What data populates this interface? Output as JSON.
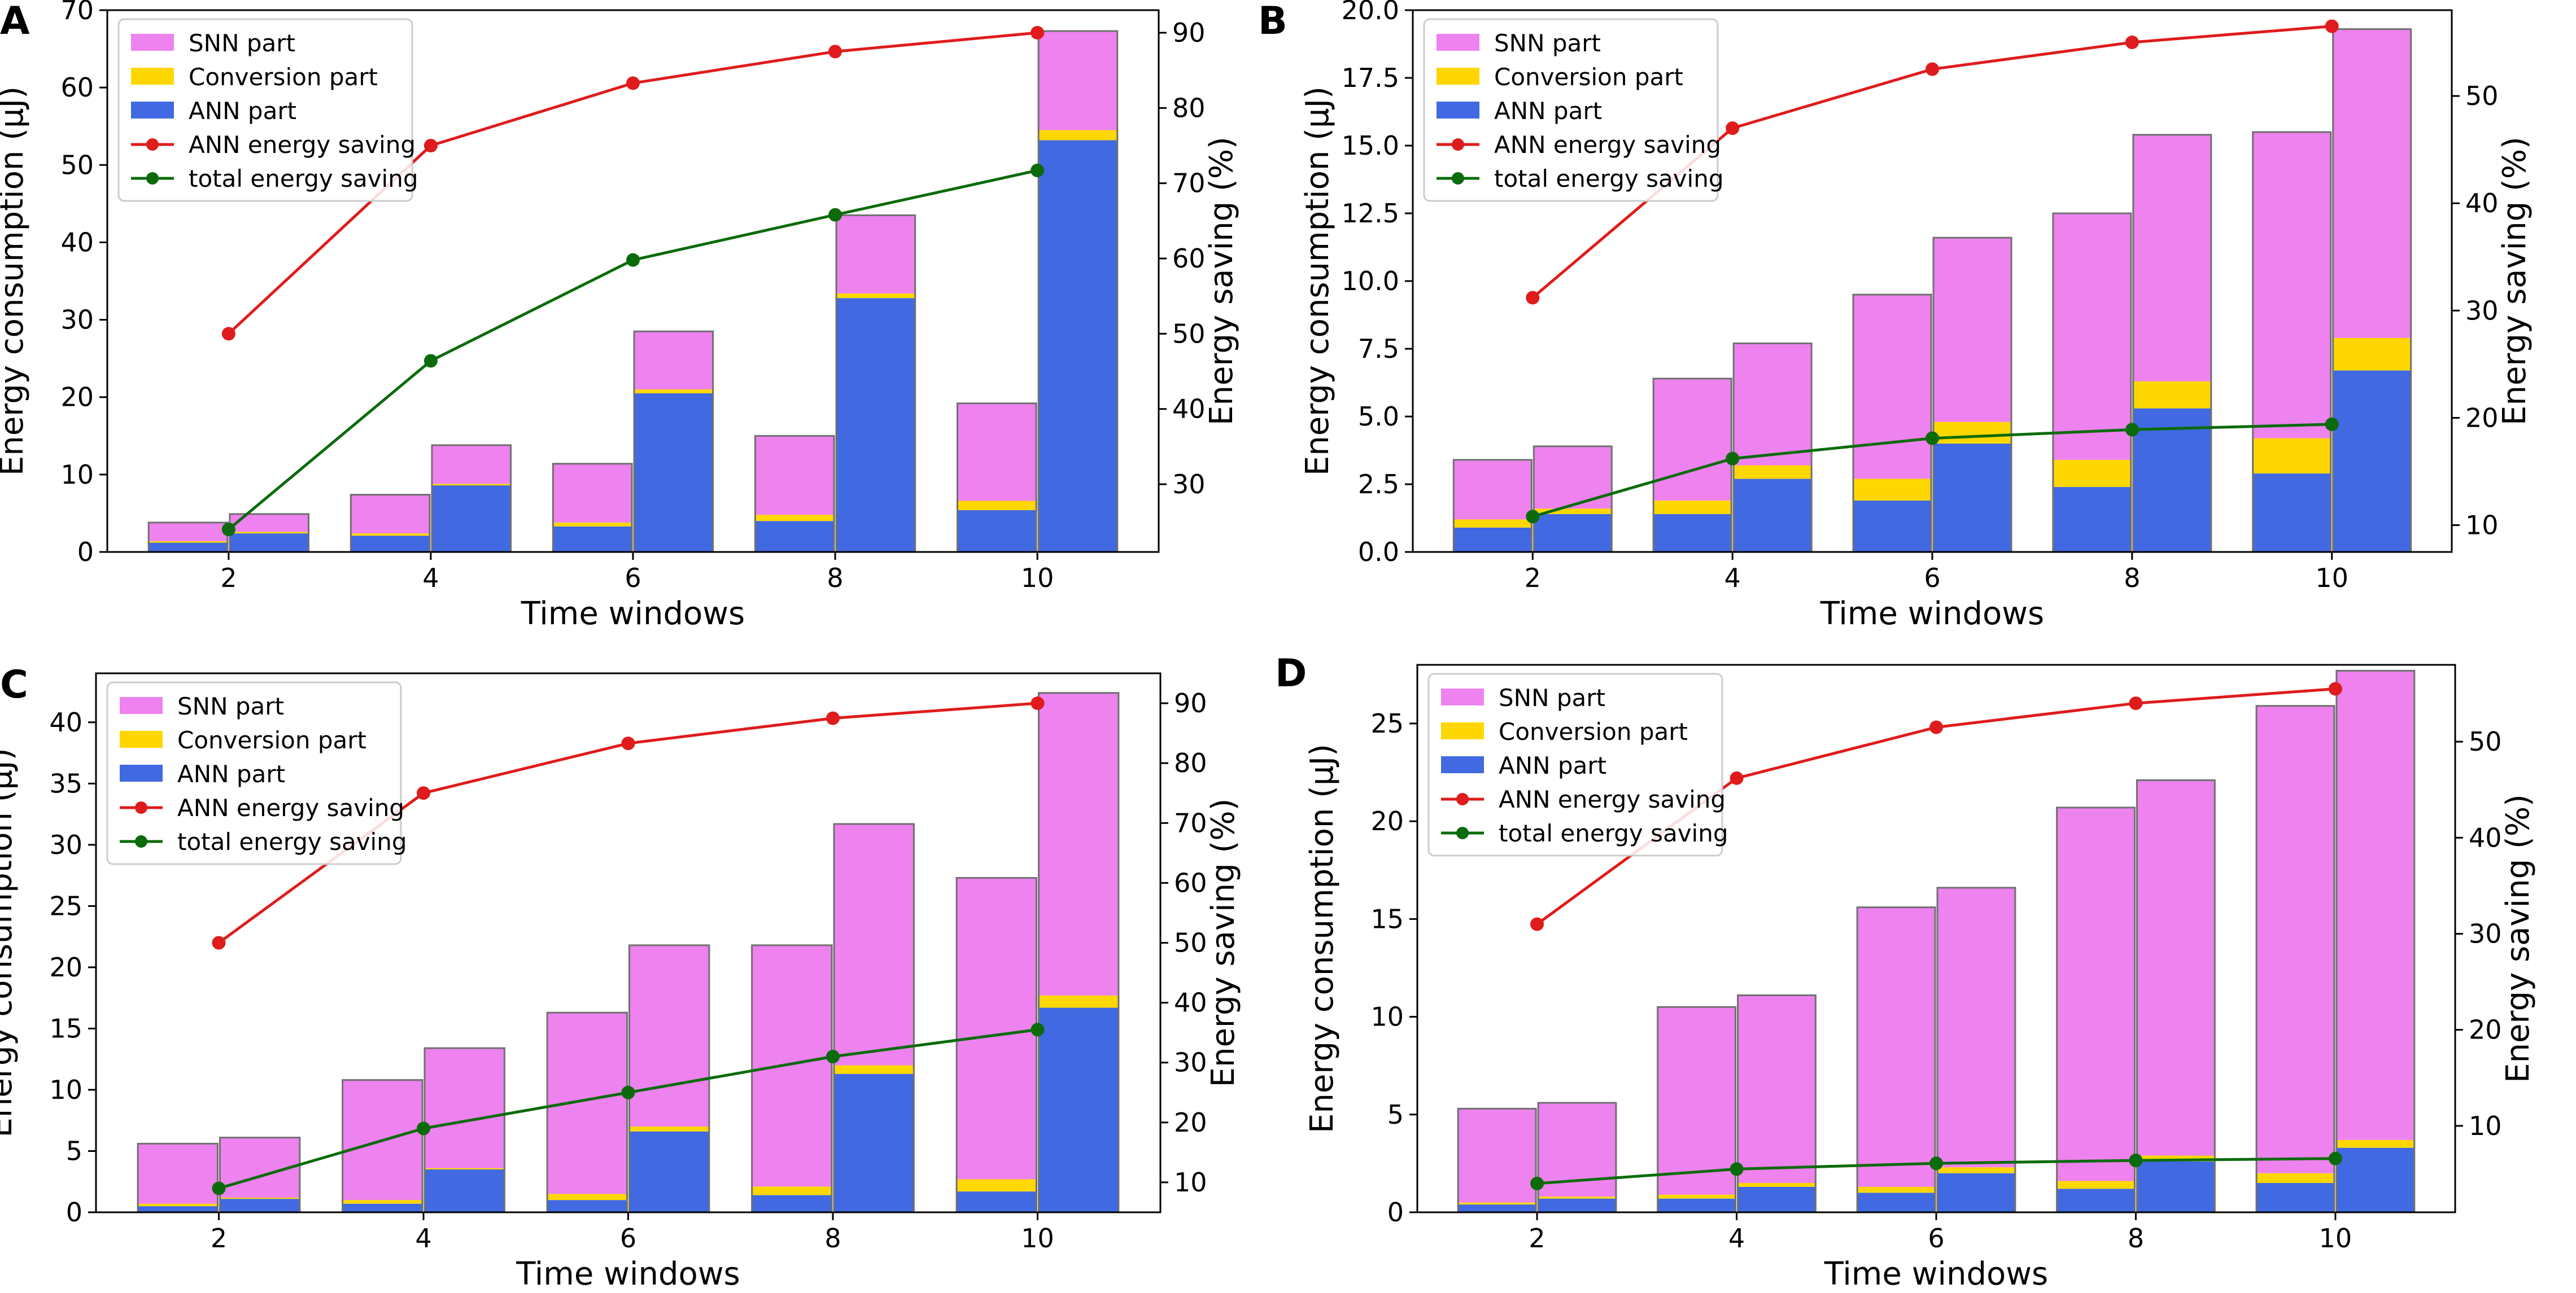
{
  "colors": {
    "snn": "#ee82ee",
    "conversion": "#ffd700",
    "ann": "#4169e1",
    "ann_saving": "#e01b1b",
    "total_saving": "#0b6b0b",
    "bar_edge": "#707070"
  },
  "chart_data": [
    {
      "panel": "A",
      "type": "bar",
      "subtype": "stacked bar with secondary-axis lines",
      "xlabel": "Time windows",
      "ylabel": "Energy consumption (μJ)",
      "y2label": "Energy saving (%)",
      "x": [
        2,
        4,
        6,
        8,
        10
      ],
      "ylim": [
        0,
        70
      ],
      "yticks": [
        0,
        10,
        20,
        30,
        40,
        50,
        60,
        70
      ],
      "y2lim": [
        21,
        93
      ],
      "y2ticks": [
        30,
        40,
        50,
        60,
        70,
        80,
        90
      ],
      "legend": [
        "SNN part",
        "Conversion part",
        "ANN part",
        "ANN energy saving",
        "total energy saving"
      ],
      "legend_position": "top-left",
      "bars_left": {
        "ann": [
          1.2,
          2.1,
          3.3,
          4.0,
          5.4
        ],
        "conversion": [
          0.2,
          0.3,
          0.5,
          0.8,
          1.2
        ],
        "snn": [
          2.4,
          5.0,
          7.6,
          10.2,
          12.6
        ]
      },
      "bars_right": {
        "ann": [
          2.4,
          8.6,
          20.5,
          32.8,
          53.2
        ],
        "conversion": [
          0.2,
          0.2,
          0.5,
          0.6,
          1.3
        ],
        "snn": [
          2.3,
          5.0,
          7.5,
          10.1,
          12.8
        ]
      },
      "ann_energy_saving": [
        50,
        75,
        83.3,
        87.5,
        90
      ],
      "total_energy_saving": [
        24,
        46.4,
        59.8,
        65.8,
        71.7
      ]
    },
    {
      "panel": "B",
      "type": "bar",
      "subtype": "stacked bar with secondary-axis lines",
      "xlabel": "Time windows",
      "ylabel": "Energy consumption (μJ)",
      "y2label": "Energy saving (%)",
      "x": [
        2,
        4,
        6,
        8,
        10
      ],
      "ylim": [
        0,
        20
      ],
      "yticks": [
        0.0,
        2.5,
        5.0,
        7.5,
        10.0,
        12.5,
        15.0,
        17.5,
        20.0
      ],
      "ytick_labels": [
        "0.0",
        "2.5",
        "5.0",
        "7.5",
        "10.0",
        "12.5",
        "15.0",
        "17.5",
        "20.0"
      ],
      "y2lim": [
        7.5,
        58
      ],
      "y2ticks": [
        10,
        20,
        30,
        40,
        50
      ],
      "legend": [
        "SNN part",
        "Conversion part",
        "ANN part",
        "ANN energy saving",
        "total energy saving"
      ],
      "legend_position": "top-left",
      "bars_left": {
        "ann": [
          0.9,
          1.4,
          1.9,
          2.4,
          2.9
        ],
        "conversion": [
          0.3,
          0.5,
          0.8,
          1.0,
          1.3
        ],
        "snn": [
          2.2,
          4.5,
          6.8,
          9.1,
          11.3
        ]
      },
      "bars_right": {
        "ann": [
          1.4,
          2.7,
          4.0,
          5.3,
          6.7
        ],
        "conversion": [
          0.2,
          0.5,
          0.8,
          1.0,
          1.2
        ],
        "snn": [
          2.3,
          4.5,
          6.8,
          9.1,
          11.4
        ]
      },
      "ann_energy_saving": [
        31.2,
        47,
        52.5,
        55,
        56.5
      ],
      "total_energy_saving": [
        10.8,
        16.2,
        18.1,
        18.9,
        19.4
      ]
    },
    {
      "panel": "C",
      "type": "bar",
      "subtype": "stacked bar with secondary-axis lines",
      "xlabel": "Time windows",
      "ylabel": "Energy consumption (μJ)",
      "y2label": "Energy saving (%)",
      "x": [
        2,
        4,
        6,
        8,
        10
      ],
      "ylim": [
        0,
        44
      ],
      "yticks": [
        0,
        5,
        10,
        15,
        20,
        25,
        30,
        35,
        40
      ],
      "y2lim": [
        5,
        95
      ],
      "y2ticks": [
        10,
        20,
        30,
        40,
        50,
        60,
        70,
        80,
        90
      ],
      "legend": [
        "SNN part",
        "Conversion part",
        "ANN part",
        "ANN energy saving",
        "total energy saving"
      ],
      "legend_position": "top-left",
      "bars_left": {
        "ann": [
          0.5,
          0.7,
          1.0,
          1.4,
          1.7
        ],
        "conversion": [
          0.2,
          0.3,
          0.5,
          0.7,
          1.0
        ],
        "snn": [
          4.9,
          9.8,
          14.8,
          19.7,
          24.6
        ]
      },
      "bars_right": {
        "ann": [
          1.1,
          3.5,
          6.6,
          11.3,
          16.7
        ],
        "conversion": [
          0.1,
          0.1,
          0.4,
          0.7,
          1.0
        ],
        "snn": [
          4.9,
          9.8,
          14.8,
          19.7,
          24.7
        ]
      },
      "ann_energy_saving": [
        50,
        75,
        83.3,
        87.5,
        90
      ],
      "total_energy_saving": [
        9,
        19,
        25,
        31,
        35.5
      ]
    },
    {
      "panel": "D",
      "type": "bar",
      "subtype": "stacked bar with secondary-axis lines",
      "xlabel": "Time windows",
      "ylabel": "Energy consumption (μJ)",
      "y2label": "Energy saving (%)",
      "x": [
        2,
        4,
        6,
        8,
        10
      ],
      "ylim": [
        0,
        28
      ],
      "yticks": [
        0,
        5,
        10,
        15,
        20,
        25
      ],
      "y2lim": [
        1,
        58
      ],
      "y2ticks": [
        10,
        20,
        30,
        40,
        50
      ],
      "legend": [
        "SNN part",
        "Conversion part",
        "ANN part",
        "ANN energy saving",
        "total energy saving"
      ],
      "legend_position": "top-left",
      "bars_left": {
        "ann": [
          0.4,
          0.7,
          1.0,
          1.2,
          1.5
        ],
        "conversion": [
          0.1,
          0.2,
          0.3,
          0.4,
          0.5
        ],
        "snn": [
          4.8,
          9.6,
          14.3,
          19.1,
          23.9
        ]
      },
      "bars_right": {
        "ann": [
          0.7,
          1.3,
          2.0,
          2.6,
          3.3
        ],
        "conversion": [
          0.1,
          0.2,
          0.3,
          0.3,
          0.4
        ],
        "snn": [
          4.8,
          9.6,
          14.3,
          19.2,
          24.0
        ]
      },
      "ann_energy_saving": [
        31,
        46.2,
        51.5,
        54,
        55.5
      ],
      "total_energy_saving": [
        4,
        5.5,
        6.1,
        6.4,
        6.6
      ]
    }
  ]
}
